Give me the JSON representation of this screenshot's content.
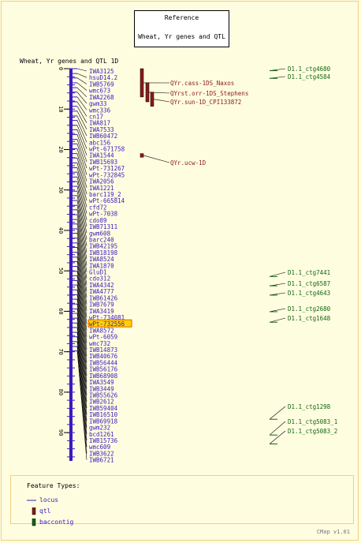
{
  "reference": {
    "title": "Reference",
    "subtitle": "Wheat, Yr genes and QTL"
  },
  "map": {
    "title": "Wheat, Yr genes and QTL 1D",
    "axis_ticks": [
      "0",
      "10",
      "20",
      "30",
      "40",
      "50",
      "60",
      "70",
      "80",
      "90"
    ],
    "axis_max_cm": 97,
    "highlighted_marker": "wPt-732556",
    "markers": [
      {
        "name": "IWA3125",
        "cm": 0.0
      },
      {
        "name": "hsuD14.2",
        "cm": 1.2
      },
      {
        "name": "IWB5769",
        "cm": 2.3
      },
      {
        "name": "wmc673",
        "cm": 3.5
      },
      {
        "name": "IWA2268",
        "cm": 4.7
      },
      {
        "name": "gwm33",
        "cm": 5.8
      },
      {
        "name": "wmc336",
        "cm": 7.0
      },
      {
        "name": "cn17",
        "cm": 8.2
      },
      {
        "name": "IWA817",
        "cm": 9.3
      },
      {
        "name": "IWA7533",
        "cm": 10.5
      },
      {
        "name": "IWB60472",
        "cm": 11.7
      },
      {
        "name": "abc156",
        "cm": 12.8
      },
      {
        "name": "wPt-671758",
        "cm": 14.0
      },
      {
        "name": "IWA1544",
        "cm": 15.1
      },
      {
        "name": "IWB15693",
        "cm": 16.3
      },
      {
        "name": "wPt-731267",
        "cm": 17.5
      },
      {
        "name": "wPt-732845",
        "cm": 18.6
      },
      {
        "name": "IWA2056",
        "cm": 19.8
      },
      {
        "name": "IWA1221",
        "cm": 21.0
      },
      {
        "name": "barc119_2",
        "cm": 22.1
      },
      {
        "name": "wPt-665814",
        "cm": 23.3
      },
      {
        "name": "cfd72",
        "cm": 24.5
      },
      {
        "name": "wPt-7038",
        "cm": 25.6
      },
      {
        "name": "cdo89",
        "cm": 26.8
      },
      {
        "name": "IWB71311",
        "cm": 27.9
      },
      {
        "name": "gwm608",
        "cm": 29.1
      },
      {
        "name": "barc240",
        "cm": 30.3
      },
      {
        "name": "IWB42195",
        "cm": 31.4
      },
      {
        "name": "IWB18198",
        "cm": 32.6
      },
      {
        "name": "IWA8524",
        "cm": 33.8
      },
      {
        "name": "IWA1870",
        "cm": 34.9
      },
      {
        "name": "GluD1",
        "cm": 36.1
      },
      {
        "name": "cdo312",
        "cm": 37.3
      },
      {
        "name": "IWA4342",
        "cm": 38.4
      },
      {
        "name": "IWA4777",
        "cm": 39.6
      },
      {
        "name": "IWB61426",
        "cm": 40.7
      },
      {
        "name": "IWB7679",
        "cm": 41.9
      },
      {
        "name": "IWA3419",
        "cm": 43.1
      },
      {
        "name": "wPt-734081",
        "cm": 44.2
      },
      {
        "name": "wPt-732556",
        "cm": 45.4
      },
      {
        "name": "IWA8572",
        "cm": 46.6
      },
      {
        "name": "wPt-6059",
        "cm": 47.7
      },
      {
        "name": "wmc732",
        "cm": 48.9
      },
      {
        "name": "IWB14873",
        "cm": 50.1
      },
      {
        "name": "IWB40676",
        "cm": 51.2
      },
      {
        "name": "IWB56444",
        "cm": 52.4
      },
      {
        "name": "IWB56176",
        "cm": 53.5
      },
      {
        "name": "IWB68908",
        "cm": 54.7
      },
      {
        "name": "IWA3549",
        "cm": 55.9
      },
      {
        "name": "IWB3449",
        "cm": 57.0
      },
      {
        "name": "IWB55626",
        "cm": 58.2
      },
      {
        "name": "IWB2612",
        "cm": 59.4
      },
      {
        "name": "IWB59404",
        "cm": 60.5
      },
      {
        "name": "IWB16510",
        "cm": 61.7
      },
      {
        "name": "IWB69918",
        "cm": 62.9
      },
      {
        "name": "gwm232",
        "cm": 64.0
      },
      {
        "name": "bcd1261",
        "cm": 65.2
      },
      {
        "name": "IWB15736",
        "cm": 66.3
      },
      {
        "name": "wmc609",
        "cm": 67.5
      },
      {
        "name": "IWB3622",
        "cm": 68.7
      },
      {
        "name": "IWB6721",
        "cm": 69.8
      }
    ],
    "qtls": [
      {
        "name": "QYr.cass-1DS_Naxos",
        "start_cm": 0.0,
        "end_cm": 7.0
      },
      {
        "name": "QYrst.orr-1DS_Stephens",
        "start_cm": 3.5,
        "end_cm": 8.2
      },
      {
        "name": "QYr.sun-1D_CPI133872",
        "start_cm": 5.8,
        "end_cm": 9.3
      },
      {
        "name": "QYr.ucw-1D",
        "start_cm": 21.0,
        "end_cm": 21.9
      }
    ],
    "contigs": [
      {
        "name": "D1.1_ctg4680",
        "cm": 0.5
      },
      {
        "name": "D1.1_ctg4584",
        "cm": 2.4
      },
      {
        "name": "D1.1_ctg7441",
        "cm": 51.4
      },
      {
        "name": "D1.1_ctg6587",
        "cm": 53.7
      },
      {
        "name": "D1.1_ctg4643",
        "cm": 56.0
      },
      {
        "name": "D1.1_ctg2680",
        "cm": 60.1
      },
      {
        "name": "D1.1_ctg1648",
        "cm": 62.7
      },
      {
        "name": "D1.1_ctg1298",
        "cm": 86.7
      },
      {
        "name": "D1.1_ctg5083_1",
        "cm": 90.6
      },
      {
        "name": "D1.1_ctg5083_2",
        "cm": 92.8
      }
    ]
  },
  "legend": {
    "title": "Feature Types:",
    "items": [
      {
        "label": "locus",
        "color": "#3a1bc0"
      },
      {
        "label": "qtl",
        "color": "#8b1a1a"
      },
      {
        "label": "baccontig",
        "color": "#116611"
      }
    ]
  },
  "colors": {
    "background": "#fffde0",
    "border": "#f0cf84",
    "locus": "#3a1bc0",
    "qtl": "#8b1a1a",
    "contig": "#116611",
    "highlight_fill": "#ffd400",
    "highlight_border": "#e06000"
  },
  "footer": "CMap v1.01"
}
